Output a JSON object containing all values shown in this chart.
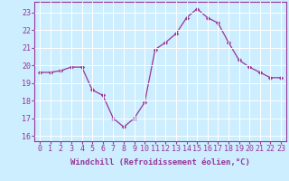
{
  "x": [
    0,
    1,
    2,
    3,
    4,
    5,
    6,
    7,
    8,
    9,
    10,
    11,
    12,
    13,
    14,
    15,
    16,
    17,
    18,
    19,
    20,
    21,
    22,
    23
  ],
  "y": [
    19.6,
    19.6,
    19.7,
    19.9,
    19.9,
    18.6,
    18.3,
    17.0,
    16.5,
    17.0,
    17.9,
    20.9,
    21.3,
    21.8,
    22.7,
    23.2,
    22.7,
    22.4,
    21.3,
    20.3,
    19.9,
    19.6,
    19.3,
    19.3
  ],
  "line_color": "#993399",
  "marker": "D",
  "marker_size": 2.2,
  "bg_color": "#cceeff",
  "grid_color": "#bbdddd",
  "xlabel": "Windchill (Refroidissement éolien,°C)",
  "ylim": [
    15.7,
    23.6
  ],
  "yticks": [
    16,
    17,
    18,
    19,
    20,
    21,
    22,
    23
  ],
  "xticks": [
    0,
    1,
    2,
    3,
    4,
    5,
    6,
    7,
    8,
    9,
    10,
    11,
    12,
    13,
    14,
    15,
    16,
    17,
    18,
    19,
    20,
    21,
    22,
    23
  ],
  "axis_fontsize": 6.5,
  "tick_fontsize": 6.0,
  "spine_color": "#993399"
}
